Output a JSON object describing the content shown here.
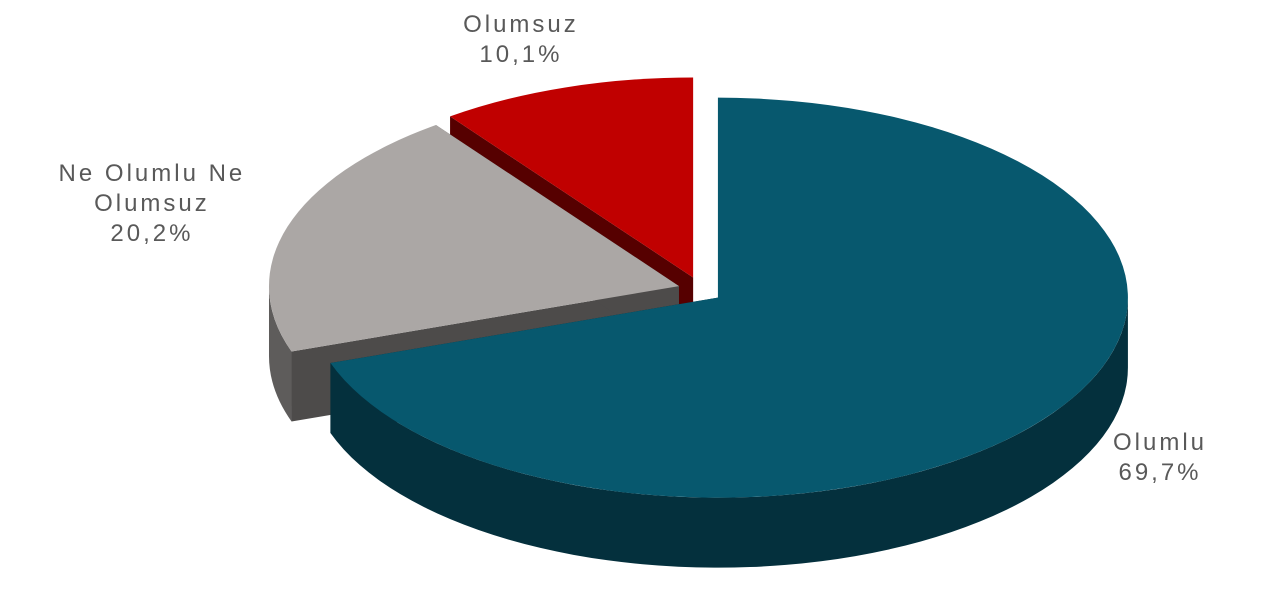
{
  "chart_data": {
    "type": "pie",
    "categories": [
      "Olumlu",
      "Ne Olumlu Ne Olumsuz",
      "Olumsuz"
    ],
    "values": [
      69.7,
      20.2,
      10.1
    ],
    "value_labels": [
      "69,7%",
      "20,2%",
      "10,1%"
    ],
    "colors": [
      "#07586e",
      "#aba7a5",
      "#c00000"
    ]
  }
}
